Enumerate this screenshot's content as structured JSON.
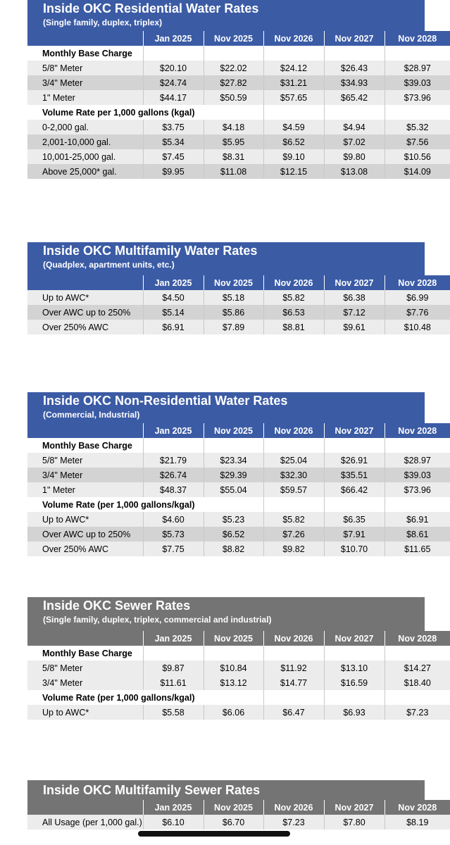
{
  "columns": [
    "Jan 2025",
    "Nov 2025",
    "Nov 2026",
    "Nov 2027",
    "Nov 2028"
  ],
  "tables": [
    {
      "id": "residential-water",
      "title": "Inside OKC Residential Water Rates",
      "subtitle": "(Single family, duplex, triplex)",
      "color": "#3b5ba5",
      "rows": [
        {
          "kind": "section",
          "label": "Monthly Base Charge"
        },
        {
          "kind": "light",
          "label": "5/8\" Meter",
          "values": [
            "$20.10",
            "$22.02",
            "$24.12",
            "$26.43",
            "$28.97"
          ]
        },
        {
          "kind": "dark",
          "label": "3/4\" Meter",
          "values": [
            "$24.74",
            "$27.82",
            "$31.21",
            "$34.93",
            "$39.03"
          ]
        },
        {
          "kind": "light",
          "label": "1\" Meter",
          "values": [
            "$44.17",
            "$50.59",
            "$57.65",
            "$65.42",
            "$73.96"
          ]
        },
        {
          "kind": "section",
          "label": "Volume Rate per 1,000 gallons (kgal)"
        },
        {
          "kind": "light",
          "label": "0-2,000 gal.",
          "values": [
            "$3.75",
            "$4.18",
            "$4.59",
            "$4.94",
            "$5.32"
          ]
        },
        {
          "kind": "dark",
          "label": "2,001-10,000 gal.",
          "values": [
            "$5.34",
            "$5.95",
            "$6.52",
            "$7.02",
            "$7.56"
          ]
        },
        {
          "kind": "light",
          "label": "10,001-25,000 gal.",
          "values": [
            "$7.45",
            "$8.31",
            "$9.10",
            "$9.80",
            "$10.56"
          ]
        },
        {
          "kind": "dark",
          "label": "Above 25,000* gal.",
          "values": [
            "$9.95",
            "$11.08",
            "$12.15",
            "$13.08",
            "$14.09"
          ]
        }
      ]
    },
    {
      "id": "multifamily-water",
      "title": "Inside OKC Multifamily Water Rates",
      "subtitle": "(Quadplex, apartment units, etc.)",
      "color": "#3b5ba5",
      "rows": [
        {
          "kind": "light",
          "label": "Up to AWC*",
          "values": [
            "$4.50",
            "$5.18",
            "$5.82",
            "$6.38",
            "$6.99"
          ]
        },
        {
          "kind": "dark",
          "label": "Over AWC up to 250%",
          "values": [
            "$5.14",
            "$5.86",
            "$6.53",
            "$7.12",
            "$7.76"
          ]
        },
        {
          "kind": "light",
          "label": "Over 250% AWC",
          "values": [
            "$6.91",
            "$7.89",
            "$8.81",
            "$9.61",
            "$10.48"
          ]
        }
      ]
    },
    {
      "id": "non-residential-water",
      "title": "Inside OKC Non-Residential Water Rates",
      "subtitle": "(Commercial, Industrial)",
      "color": "#3b5ba5",
      "rows": [
        {
          "kind": "section",
          "label": "Monthly Base Charge"
        },
        {
          "kind": "light",
          "label": "5/8\" Meter",
          "values": [
            "$21.79",
            "$23.34",
            "$25.04",
            "$26.91",
            "$28.97"
          ]
        },
        {
          "kind": "dark",
          "label": "3/4\" Meter",
          "values": [
            "$26.74",
            "$29.39",
            "$32.30",
            "$35.51",
            "$39.03"
          ]
        },
        {
          "kind": "light",
          "label": "1\" Meter",
          "values": [
            "$48.37",
            "$55.04",
            "$59.57",
            "$66.42",
            "$73.96"
          ]
        },
        {
          "kind": "section",
          "label": "Volume Rate (per 1,000 gallons/kgal)"
        },
        {
          "kind": "light",
          "label": "Up to AWC*",
          "values": [
            "$4.60",
            "$5.23",
            "$5.82",
            "$6.35",
            "$6.91"
          ]
        },
        {
          "kind": "dark",
          "label": "Over AWC up to 250%",
          "values": [
            "$5.73",
            "$6.52",
            "$7.26",
            "$7.91",
            "$8.61"
          ]
        },
        {
          "kind": "light",
          "label": "Over 250% AWC",
          "values": [
            "$7.75",
            "$8.82",
            "$9.82",
            "$10.70",
            "$11.65"
          ]
        }
      ]
    },
    {
      "id": "sewer",
      "title": "Inside OKC Sewer Rates",
      "subtitle": "(Single family, duplex, triplex, commercial and industrial)",
      "color": "#747474",
      "rows": [
        {
          "kind": "section",
          "label": "Monthly Base Charge"
        },
        {
          "kind": "light",
          "label": "5/8\" Meter",
          "values": [
            "$9.87",
            "$10.84",
            "$11.92",
            "$13.10",
            "$14.27"
          ]
        },
        {
          "kind": "light",
          "label": "3/4\" Meter",
          "values": [
            "$11.61",
            "$13.12",
            "$14.77",
            "$16.59",
            "$18.40"
          ]
        },
        {
          "kind": "section",
          "label": "Volume Rate (per 1,000 gallons/kgal)"
        },
        {
          "kind": "light",
          "label": "Up to AWC*",
          "values": [
            "$5.58",
            "$6.06",
            "$6.47",
            "$6.93",
            "$7.23"
          ]
        }
      ]
    },
    {
      "id": "multifamily-sewer",
      "title": "Inside OKC Multifamily Sewer Rates",
      "subtitle": "",
      "color": "#747474",
      "rows": [
        {
          "kind": "light",
          "label": "All Usage (per 1,000 gal.)",
          "values": [
            "$6.10",
            "$6.70",
            "$7.23",
            "$7.80",
            "$8.19"
          ]
        }
      ]
    }
  ]
}
